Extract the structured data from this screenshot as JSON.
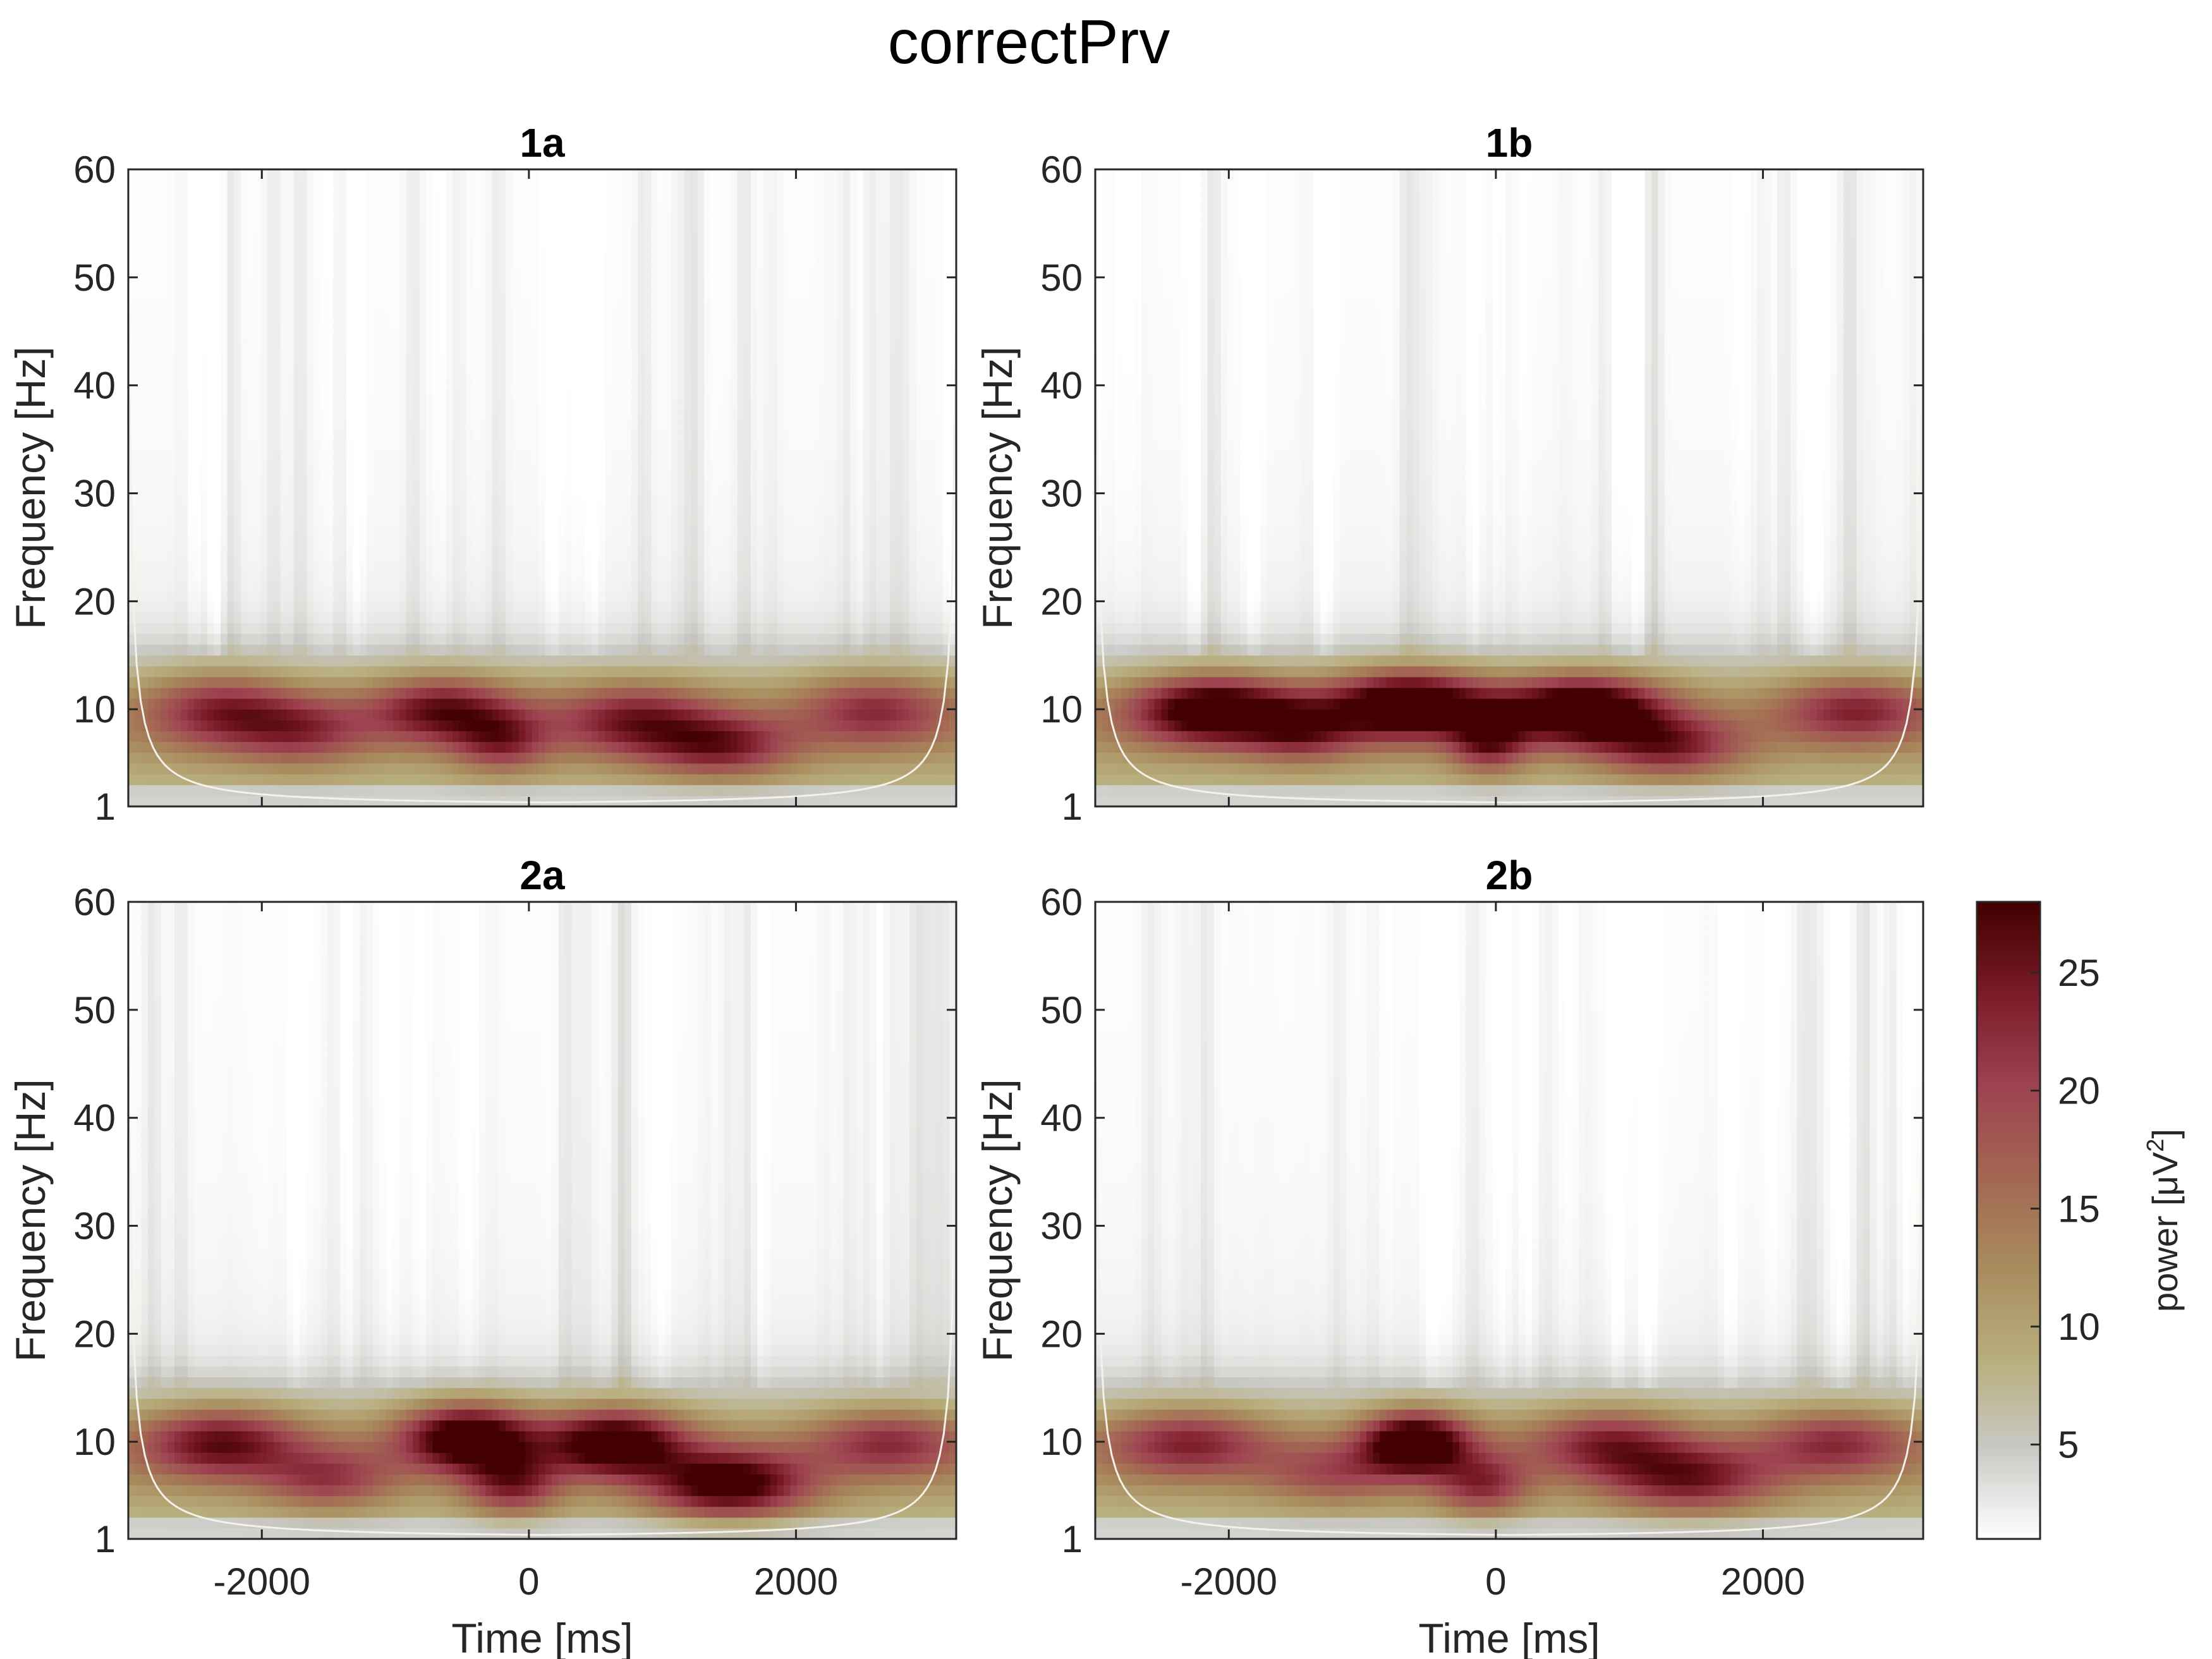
{
  "figure": {
    "title": "correctPrv"
  },
  "chart_data": {
    "type": "heatmap",
    "x_unit_note": "time in ms",
    "xlabel": "Time [ms]",
    "ylabel": "Frequency [Hz]",
    "xlim": [
      -3000,
      3200
    ],
    "ylim": [
      1,
      60
    ],
    "xticks": [
      -2000,
      0,
      2000
    ],
    "yticks": [
      1,
      10,
      20,
      30,
      40,
      50,
      60
    ],
    "colorbar": {
      "label_prefix": "power [μV",
      "label_sup": "2",
      "label_suffix": "]",
      "range": [
        1,
        28
      ],
      "ticks": [
        5,
        10,
        15,
        20,
        25
      ],
      "colormap": [
        "#ffffff",
        "#c9c9c5",
        "#b8ad7c",
        "#a88b5d",
        "#a36653",
        "#9d4250",
        "#7a1b27",
        "#420000"
      ]
    },
    "panels": [
      {
        "title": "1a",
        "blobs": [
          {
            "t": -2300,
            "f": 10,
            "st": 380,
            "sf": 2.4,
            "a": 12
          },
          {
            "t": -1700,
            "f": 8,
            "st": 350,
            "sf": 2.2,
            "a": 10
          },
          {
            "t": -650,
            "f": 10,
            "st": 380,
            "sf": 2.2,
            "a": 15
          },
          {
            "t": -200,
            "f": 7,
            "st": 250,
            "sf": 2.0,
            "a": 11
          },
          {
            "t": 800,
            "f": 9,
            "st": 420,
            "sf": 2.4,
            "a": 13
          },
          {
            "t": 1450,
            "f": 6.5,
            "st": 380,
            "sf": 2.0,
            "a": 13
          },
          {
            "t": 2600,
            "f": 10,
            "st": 400,
            "sf": 2.4,
            "a": 11
          }
        ]
      },
      {
        "title": "1b",
        "blobs": [
          {
            "t": -2100,
            "f": 10,
            "st": 420,
            "sf": 2.2,
            "a": 22
          },
          {
            "t": -1450,
            "f": 8,
            "st": 300,
            "sf": 2.0,
            "a": 11
          },
          {
            "t": -650,
            "f": 10.5,
            "st": 420,
            "sf": 2.2,
            "a": 24
          },
          {
            "t": -50,
            "f": 7,
            "st": 200,
            "sf": 2.0,
            "a": 13
          },
          {
            "t": 650,
            "f": 10,
            "st": 420,
            "sf": 2.2,
            "a": 24
          },
          {
            "t": 1300,
            "f": 6.5,
            "st": 380,
            "sf": 2.0,
            "a": 13
          },
          {
            "t": 2700,
            "f": 10,
            "st": 400,
            "sf": 2.2,
            "a": 12
          }
        ]
      },
      {
        "title": "2a",
        "blobs": [
          {
            "t": -2300,
            "f": 10,
            "st": 420,
            "sf": 2.3,
            "a": 15
          },
          {
            "t": -1500,
            "f": 6.5,
            "st": 350,
            "sf": 2.0,
            "a": 10
          },
          {
            "t": -450,
            "f": 10.5,
            "st": 350,
            "sf": 2.2,
            "a": 22
          },
          {
            "t": -120,
            "f": 6,
            "st": 250,
            "sf": 2.0,
            "a": 13
          },
          {
            "t": 650,
            "f": 10,
            "st": 360,
            "sf": 2.2,
            "a": 21
          },
          {
            "t": 1500,
            "f": 6,
            "st": 420,
            "sf": 2.2,
            "a": 20
          },
          {
            "t": 2700,
            "f": 10,
            "st": 400,
            "sf": 2.2,
            "a": 11
          }
        ]
      },
      {
        "title": "2b",
        "blobs": [
          {
            "t": -2300,
            "f": 10,
            "st": 420,
            "sf": 2.2,
            "a": 12
          },
          {
            "t": -1200,
            "f": 7,
            "st": 400,
            "sf": 2.0,
            "a": 8
          },
          {
            "t": -600,
            "f": 10,
            "st": 280,
            "sf": 2.0,
            "a": 23
          },
          {
            "t": -100,
            "f": 6,
            "st": 250,
            "sf": 2.0,
            "a": 12
          },
          {
            "t": 850,
            "f": 10,
            "st": 400,
            "sf": 2.2,
            "a": 12
          },
          {
            "t": 1450,
            "f": 6.5,
            "st": 450,
            "sf": 2.2,
            "a": 14
          },
          {
            "t": 2550,
            "f": 10,
            "st": 400,
            "sf": 2.2,
            "a": 11
          }
        ]
      }
    ]
  }
}
